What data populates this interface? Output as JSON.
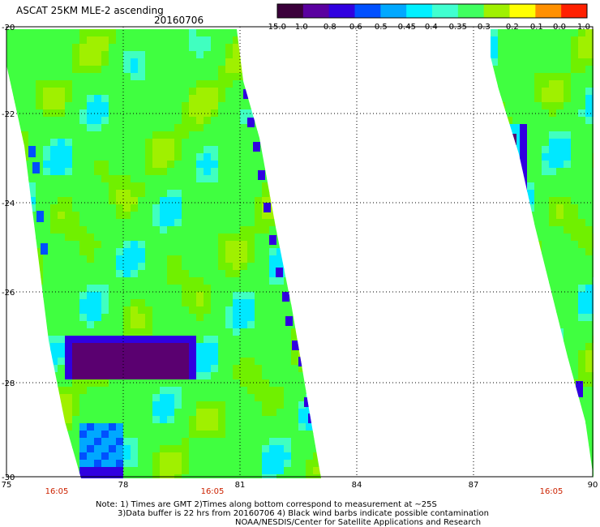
{
  "header": {
    "title": "ASCAT 25KM MLE-2 ascending",
    "date": "20160706"
  },
  "colorbar": {
    "labels": [
      "-15.0",
      "-1.0",
      "-0.8",
      "-0.6",
      "-0.5",
      "-0.45",
      "-0.4",
      "-0.35",
      "-0.3",
      "-0.2",
      "-0.1",
      "0.0",
      "1.0"
    ],
    "colors": [
      "#3a003a",
      "#5a00a0",
      "#3000e0",
      "#0050ff",
      "#00a8ff",
      "#00f0ff",
      "#40ffd0",
      "#40ff60",
      "#a0f000",
      "#ffff00",
      "#ff9000",
      "#ff2000"
    ]
  },
  "map": {
    "x_ticks": [
      "75",
      "78",
      "81",
      "84",
      "87",
      "90"
    ],
    "y_ticks": [
      "-20",
      "-22",
      "-24",
      "-26",
      "-28",
      "-30"
    ],
    "times": [
      "16:05",
      "16:05",
      "16:05"
    ],
    "time_color": "#cc2200"
  },
  "notes": [
    "Note: 1) Times are GMT 2)Times along bottom correspond to measurement at ~25S",
    "3)Data buffer is 22 hrs from 20160706 4) Black wind barbs indicate possible contamination",
    "NOAA/NESDIS/Center for Satellite Applications and Research"
  ]
}
